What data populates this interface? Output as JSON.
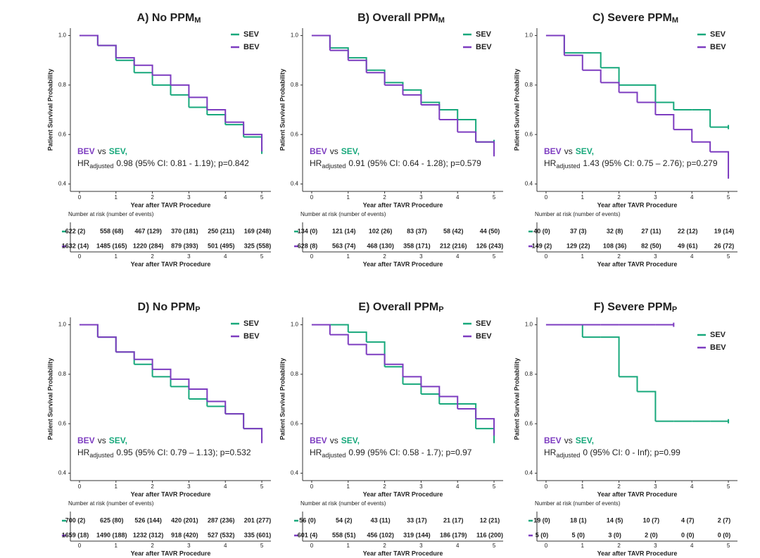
{
  "chart_data": [
    {
      "type": "step",
      "title": "A) No PPM",
      "title_sub": "M",
      "x_label": "Year after TAVR Procedure",
      "y_label": "Patient Survival Probability",
      "x": [
        0,
        0.5,
        1,
        1.5,
        2,
        2.5,
        3,
        3.5,
        4,
        4.5,
        5
      ],
      "xlim": [
        -0.25,
        5.25
      ],
      "ylim": [
        0.37,
        1.03
      ],
      "xticks": [
        0,
        1,
        2,
        3,
        4,
        5
      ],
      "yticks": [
        0.4,
        0.6,
        0.8,
        {
          "value": 1,
          "label": "1.0"
        }
      ],
      "legend": "upper right",
      "series": [
        {
          "name": "SEV",
          "color": "#17a87b",
          "values": [
            1,
            0.96,
            0.9,
            0.85,
            0.8,
            0.76,
            0.71,
            0.68,
            0.64,
            0.59,
            0.53
          ]
        },
        {
          "name": "BEV",
          "color": "#7d3cc0",
          "values": [
            1,
            0.96,
            0.91,
            0.88,
            0.84,
            0.8,
            0.75,
            0.7,
            0.65,
            0.6,
            0.54
          ]
        }
      ],
      "annotation": {
        "vs": "vs",
        "hr": "HR",
        "hr_sub": "adjusted",
        "hr_text": "0.98 (95% CI: 0.81 - 1.19); p=0.842"
      },
      "risk_table": {
        "title": "Number at risk (number of events)",
        "rows": [
          [
            "622 (2)",
            "558 (68)",
            "467 (129)",
            "370 (181)",
            "250 (211)",
            "169 (248)"
          ],
          [
            "1632 (14)",
            "1485 (165)",
            "1220 (284)",
            "879 (393)",
            "501 (495)",
            "325 (558)"
          ]
        ]
      }
    },
    {
      "type": "step",
      "title": "B) Overall PPM",
      "title_sub": "M",
      "x_label": "Year after TAVR Procedure",
      "y_label": "Patient Survival Probability",
      "x": [
        0,
        0.5,
        1,
        1.5,
        2,
        2.5,
        3,
        3.5,
        4,
        4.5,
        5
      ],
      "xlim": [
        -0.25,
        5.25
      ],
      "ylim": [
        0.37,
        1.03
      ],
      "xticks": [
        0,
        1,
        2,
        3,
        4,
        5
      ],
      "yticks": [
        0.4,
        0.6,
        0.8,
        {
          "value": 1,
          "label": "1.0"
        }
      ],
      "legend": "upper right",
      "series": [
        {
          "name": "SEV",
          "color": "#17a87b",
          "values": [
            1,
            0.95,
            0.91,
            0.86,
            0.81,
            0.78,
            0.73,
            0.7,
            0.66,
            0.57,
            0.57
          ]
        },
        {
          "name": "BEV",
          "color": "#7d3cc0",
          "values": [
            1,
            0.94,
            0.9,
            0.85,
            0.8,
            0.76,
            0.72,
            0.66,
            0.61,
            0.57,
            0.52
          ]
        }
      ],
      "annotation": {
        "vs": "vs",
        "hr": "HR",
        "hr_sub": "adjusted",
        "hr_text": "0.91 (95% CI: 0.64 - 1.28); p=0.579"
      },
      "risk_table": {
        "title": "Number at risk (number of events)",
        "rows": [
          [
            "134 (0)",
            "121 (14)",
            "102 (26)",
            "83 (37)",
            "58 (42)",
            "44 (50)"
          ],
          [
            "628 (8)",
            "563 (74)",
            "468 (130)",
            "358 (171)",
            "212 (216)",
            "126 (243)"
          ]
        ]
      }
    },
    {
      "type": "step",
      "title": "C) Severe PPM",
      "title_sub": "M",
      "x_label": "Year after TAVR Procedure",
      "y_label": "Patient Survival Probability",
      "x": [
        0,
        0.5,
        1,
        1.5,
        2,
        2.5,
        3,
        3.5,
        4,
        4.5,
        5
      ],
      "xlim": [
        -0.25,
        5.25
      ],
      "ylim": [
        0.37,
        1.03
      ],
      "xticks": [
        0,
        1,
        2,
        3,
        4,
        5
      ],
      "yticks": [
        0.4,
        0.6,
        0.8,
        {
          "value": 1,
          "label": "1.0"
        }
      ],
      "legend": "upper right",
      "series": [
        {
          "name": "SEV",
          "color": "#17a87b",
          "values": [
            1,
            0.93,
            0.93,
            0.87,
            0.8,
            0.8,
            0.73,
            0.7,
            0.7,
            0.63,
            0.63
          ]
        },
        {
          "name": "BEV",
          "color": "#7d3cc0",
          "values": [
            1,
            0.92,
            0.86,
            0.81,
            0.77,
            0.73,
            0.68,
            0.62,
            0.57,
            0.53,
            0.43
          ]
        }
      ],
      "annotation": {
        "vs": "vs",
        "hr": "HR",
        "hr_sub": "adjusted",
        "hr_text": "1.43 (95% CI: 0.75 – 2.76); p=0.279"
      },
      "risk_table": {
        "title": "Number at risk (number of events)",
        "rows": [
          [
            "40 (0)",
            "37 (3)",
            "32 (8)",
            "27 (11)",
            "22 (12)",
            "19 (14)"
          ],
          [
            "149 (2)",
            "129 (22)",
            "108 (36)",
            "82 (50)",
            "49 (61)",
            "26 (72)"
          ]
        ]
      }
    },
    {
      "type": "step",
      "title": "D) No PPM",
      "title_sub": "P",
      "x_label": "Year after TAVR Procedure",
      "y_label": "Patient Survival Probability",
      "x": [
        0,
        0.5,
        1,
        1.5,
        2,
        2.5,
        3,
        3.5,
        4,
        4.5,
        5
      ],
      "xlim": [
        -0.25,
        5.25
      ],
      "ylim": [
        0.37,
        1.03
      ],
      "xticks": [
        0,
        1,
        2,
        3,
        4,
        5
      ],
      "yticks": [
        0.4,
        0.6,
        0.8,
        {
          "value": 1,
          "label": "1.0"
        }
      ],
      "legend": "upper right",
      "series": [
        {
          "name": "SEV",
          "color": "#17a87b",
          "values": [
            1,
            0.95,
            0.89,
            0.84,
            0.79,
            0.75,
            0.7,
            0.67,
            0.64,
            0.58,
            0.54
          ]
        },
        {
          "name": "BEV",
          "color": "#7d3cc0",
          "values": [
            1,
            0.95,
            0.89,
            0.86,
            0.82,
            0.78,
            0.74,
            0.69,
            0.64,
            0.58,
            0.53
          ]
        }
      ],
      "annotation": {
        "vs": "vs",
        "hr": "HR",
        "hr_sub": "adjusted",
        "hr_text": "0.95 (95% CI: 0.79 – 1.13); p=0.532"
      },
      "risk_table": {
        "title": "Number at risk (number of events)",
        "rows": [
          [
            "700 (2)",
            "625 (80)",
            "526 (144)",
            "420 (201)",
            "287 (236)",
            "201 (277)"
          ],
          [
            "1659 (18)",
            "1490 (188)",
            "1232 (312)",
            "918 (420)",
            "527 (532)",
            "335 (601)"
          ]
        ]
      }
    },
    {
      "type": "step",
      "title": "E) Overall PPM",
      "title_sub": "P",
      "x_label": "Year after TAVR Procedure",
      "y_label": "Patient Survival Probability",
      "x": [
        0,
        0.5,
        1,
        1.5,
        2,
        2.5,
        3,
        3.5,
        4,
        4.5,
        5
      ],
      "xlim": [
        -0.25,
        5.25
      ],
      "ylim": [
        0.37,
        1.03
      ],
      "xticks": [
        0,
        1,
        2,
        3,
        4,
        5
      ],
      "yticks": [
        0.4,
        0.6,
        0.8,
        {
          "value": 1,
          "label": "1.0"
        }
      ],
      "legend": "upper right",
      "series": [
        {
          "name": "SEV",
          "color": "#17a87b",
          "values": [
            1,
            1,
            0.97,
            0.93,
            0.83,
            0.76,
            0.72,
            0.68,
            0.68,
            0.58,
            0.53
          ]
        },
        {
          "name": "BEV",
          "color": "#7d3cc0",
          "values": [
            1,
            0.96,
            0.92,
            0.88,
            0.84,
            0.79,
            0.75,
            0.71,
            0.66,
            0.62,
            0.56
          ]
        }
      ],
      "annotation": {
        "vs": "vs",
        "hr": "HR",
        "hr_sub": "adjusted",
        "hr_text": "0.99 (95% CI: 0.58 - 1.7); p=0.97"
      },
      "risk_table": {
        "title": "Number at risk (number of events)",
        "rows": [
          [
            "56 (0)",
            "54 (2)",
            "43 (11)",
            "33 (17)",
            "21 (17)",
            "12 (21)"
          ],
          [
            "601 (4)",
            "558 (51)",
            "456 (102)",
            "319 (144)",
            "186 (179)",
            "116 (200)"
          ]
        ]
      }
    },
    {
      "type": "step",
      "title": "F) Severe PPM",
      "title_sub": "P",
      "x_label": "Year after TAVR Procedure",
      "y_label": "Patient Survival Probability",
      "x": [
        0,
        0.5,
        1,
        1.5,
        2,
        2.5,
        3,
        3.5,
        4,
        4.5,
        5
      ],
      "xlim": [
        -0.25,
        5.25
      ],
      "ylim": [
        0.37,
        1.03
      ],
      "xticks": [
        0,
        1,
        2,
        3,
        4,
        5
      ],
      "yticks": [
        0.4,
        0.6,
        0.8,
        {
          "value": 1,
          "label": "1.0"
        }
      ],
      "legend": "right",
      "series": [
        {
          "name": "SEV",
          "color": "#17a87b",
          "values": [
            1,
            1,
            0.95,
            0.95,
            0.79,
            0.73,
            0.61,
            0.61,
            0.61,
            0.61,
            0.61
          ]
        },
        {
          "name": "BEV",
          "color": "#7d3cc0",
          "values": [
            1,
            1,
            1,
            1,
            1,
            1,
            1,
            1,
            null,
            null,
            null
          ]
        }
      ],
      "annotation": {
        "vs": "vs",
        "hr": "HR",
        "hr_sub": "adjusted",
        "hr_text": "0 (95% CI: 0 - Inf); p=0.99"
      },
      "risk_table": {
        "title": "Number at risk (number of events)",
        "rows": [
          [
            "19 (0)",
            "18 (1)",
            "14 (5)",
            "10 (7)",
            "4 (7)",
            "2 (7)"
          ],
          [
            "5 (0)",
            "5 (0)",
            "3 (0)",
            "2 (0)",
            "0 (0)",
            "0 (0)"
          ]
        ]
      }
    }
  ]
}
